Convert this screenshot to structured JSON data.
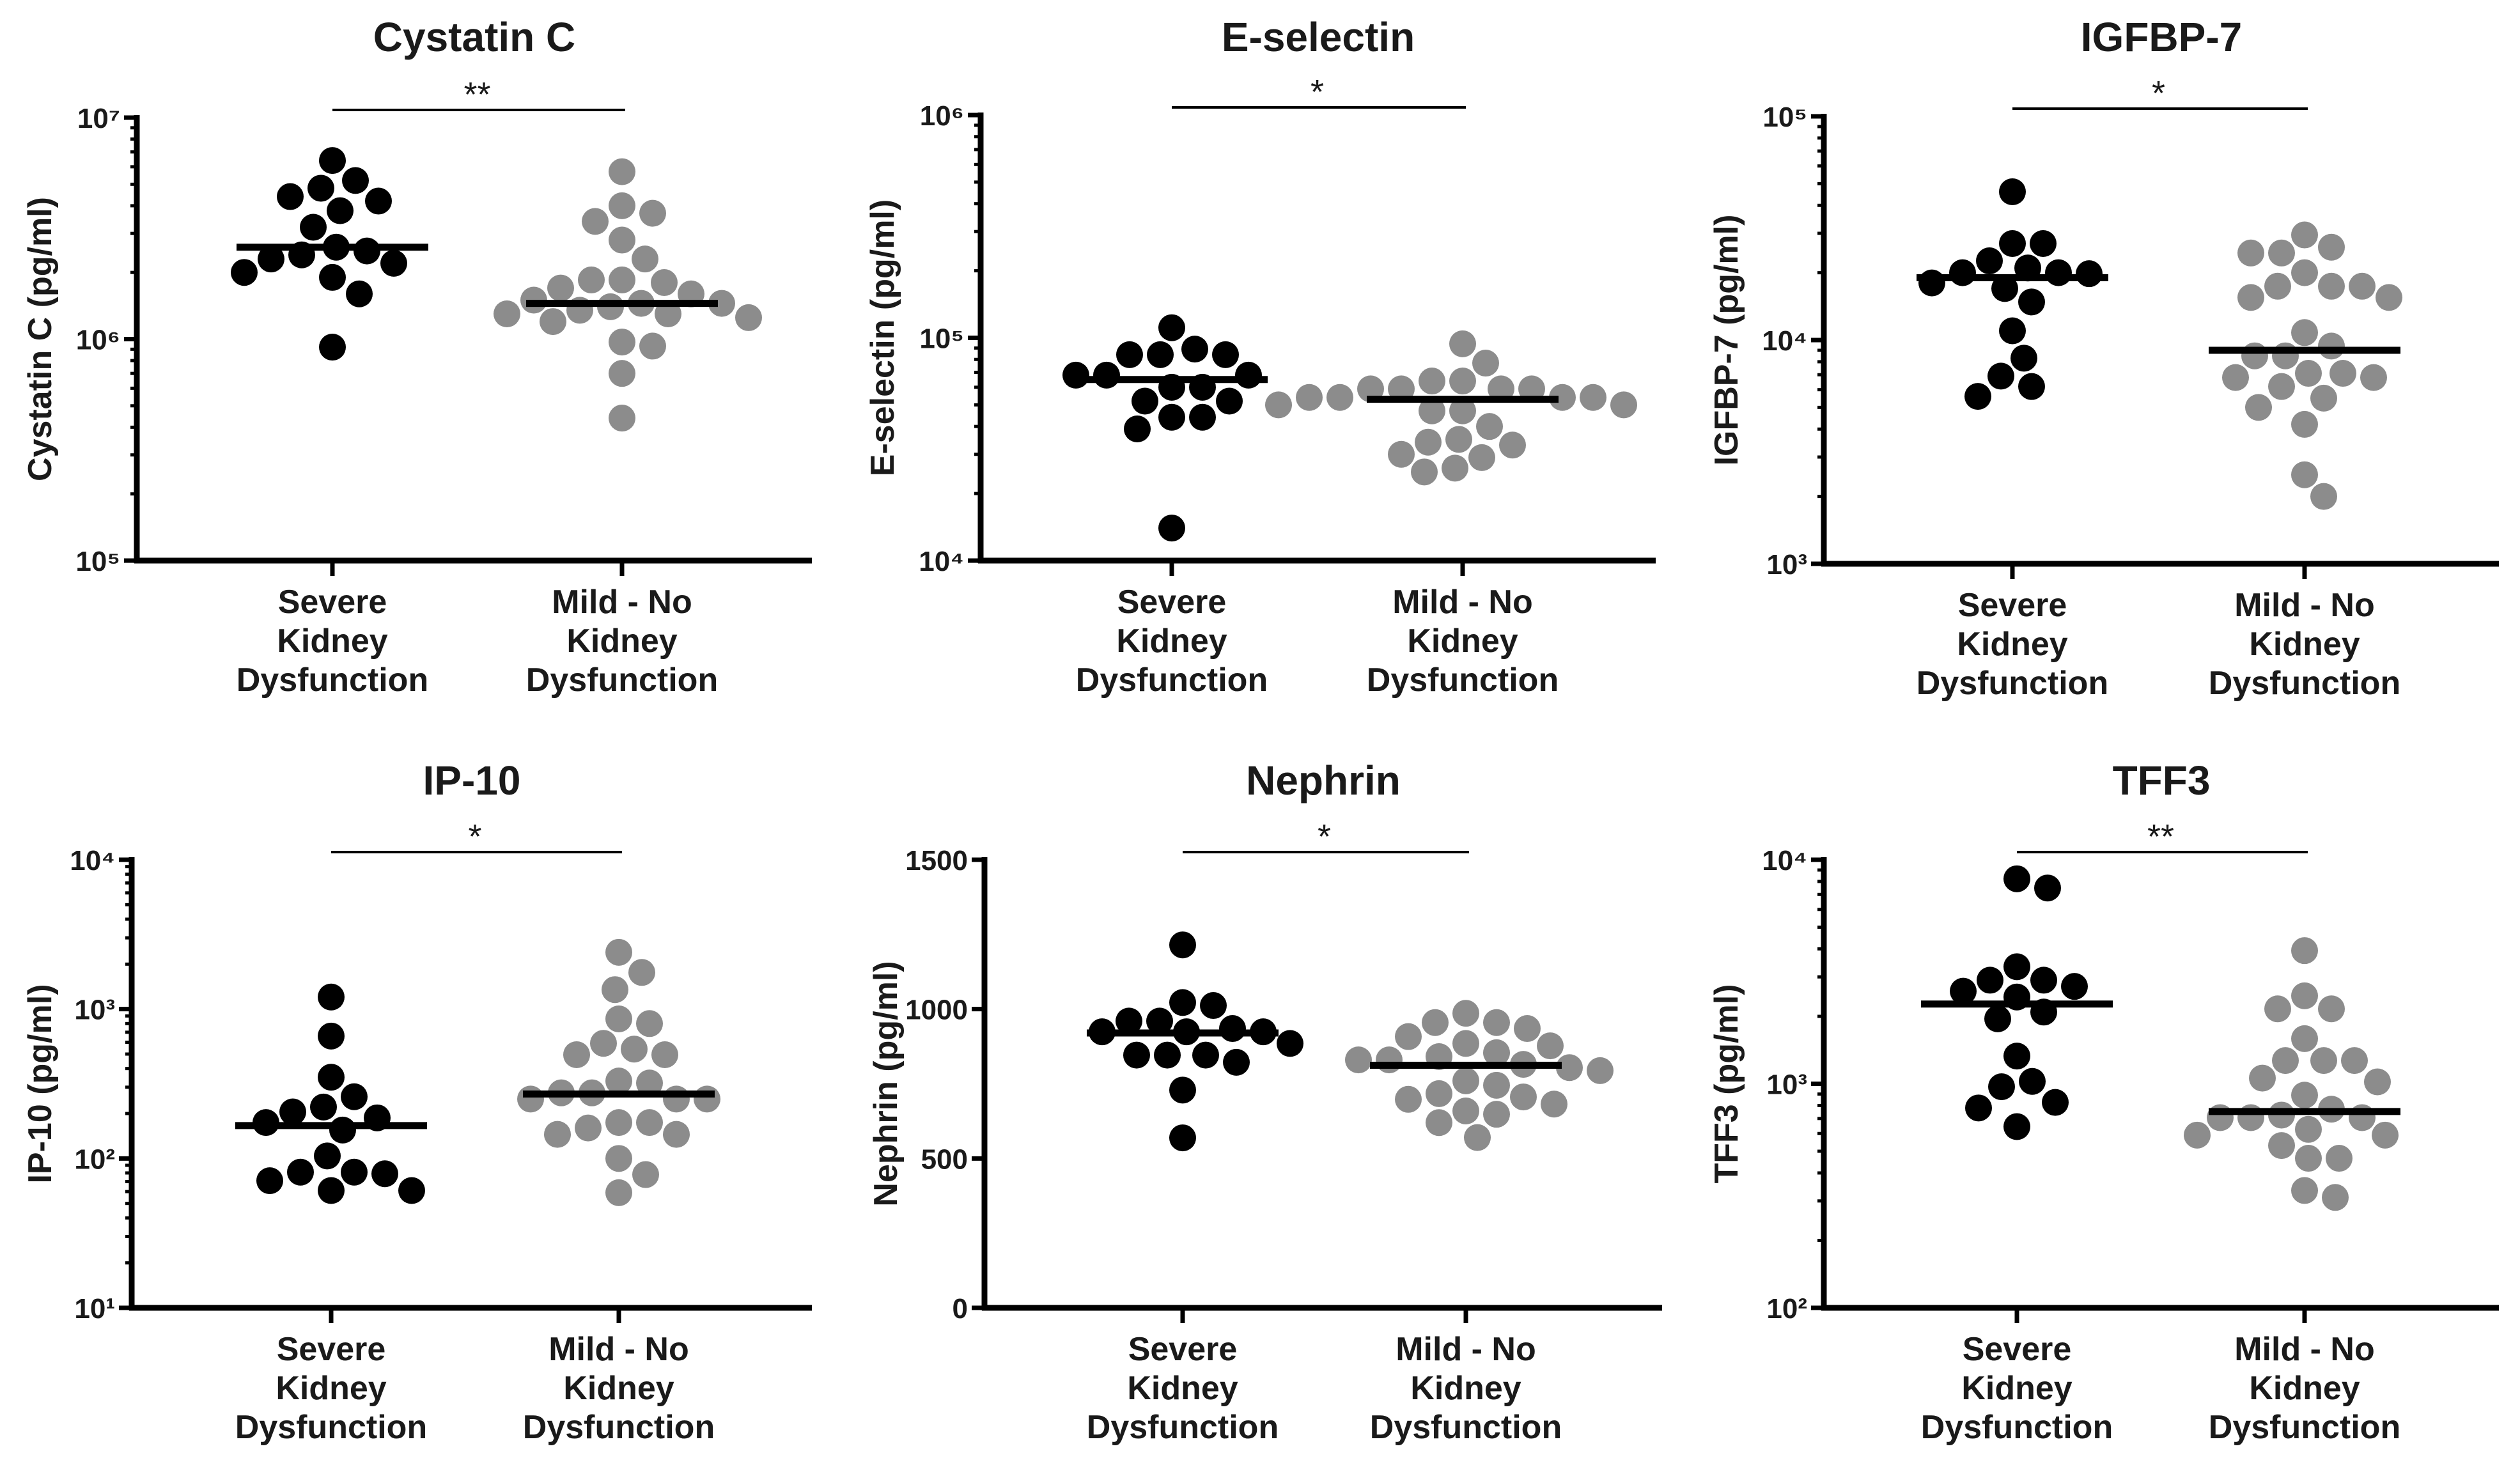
{
  "chart_data": [
    {
      "type": "scatter",
      "title": "Cystatin C",
      "ylabel": "Cystatin C (pg/ml)",
      "yscale": "log",
      "ylim": [
        100000,
        10000000
      ],
      "yticks": [
        100000,
        1000000,
        10000000
      ],
      "ytick_labels": [
        "10⁵",
        "10⁶",
        "10⁷"
      ],
      "categories": [
        [
          "Severe",
          "Kidney",
          "Dysfunction"
        ],
        [
          "Mild - No",
          "Kidney",
          "Dysfunction"
        ]
      ],
      "significance": "**",
      "series": [
        {
          "name": "Severe Kidney Dysfunction",
          "color": "#000000",
          "median": 2600000,
          "values": [
            6400000,
            5200000,
            4800000,
            4400000,
            4200000,
            3800000,
            3200000,
            2600000,
            2500000,
            2400000,
            2300000,
            2200000,
            2000000,
            1900000,
            1600000,
            920000
          ]
        },
        {
          "name": "Mild - No Kidney Dysfunction",
          "color": "#8c8c8c",
          "median": 1450000,
          "values": [
            5700000,
            4000000,
            3700000,
            3400000,
            2800000,
            2300000,
            1850000,
            1850000,
            1800000,
            1700000,
            1600000,
            1500000,
            1450000,
            1450000,
            1400000,
            1350000,
            1300000,
            1300000,
            1250000,
            1200000,
            970000,
            930000,
            700000,
            440000
          ]
        }
      ]
    },
    {
      "type": "scatter",
      "title": "E-selectin",
      "ylabel": "E-selectin (pg/ml)",
      "yscale": "log",
      "ylim": [
        10000,
        1000000
      ],
      "yticks": [
        10000,
        100000,
        1000000
      ],
      "ytick_labels": [
        "10⁴",
        "10⁵",
        "10⁶"
      ],
      "categories": [
        [
          "Severe",
          "Kidney",
          "Dysfunction"
        ],
        [
          "Mild - No",
          "Kidney",
          "Dysfunction"
        ]
      ],
      "significance": "*",
      "series": [
        {
          "name": "Severe Kidney Dysfunction",
          "color": "#000000",
          "median": 65000,
          "values": [
            111000,
            89000,
            84000,
            84000,
            84000,
            68000,
            68000,
            68000,
            60000,
            60000,
            52000,
            52000,
            44000,
            44000,
            39000,
            14000
          ]
        },
        {
          "name": "Mild - No Kidney Dysfunction",
          "color": "#8c8c8c",
          "median": 53000,
          "values": [
            94000,
            77000,
            64000,
            64000,
            59000,
            59000,
            59000,
            59000,
            54000,
            54000,
            54000,
            54000,
            50000,
            50000,
            47000,
            47000,
            40000,
            35000,
            34000,
            33000,
            30000,
            29000,
            26000,
            25000
          ]
        }
      ]
    },
    {
      "type": "scatter",
      "title": "IGFBP-7",
      "ylabel": "IGFBP-7 (pg/ml)",
      "yscale": "log",
      "ylim": [
        1000,
        100000
      ],
      "yticks": [
        1000,
        10000,
        100000
      ],
      "ytick_labels": [
        "10³",
        "10⁴",
        "10⁵"
      ],
      "categories": [
        [
          "Severe",
          "Kidney",
          "Dysfunction"
        ],
        [
          "Mild - No",
          "Kidney",
          "Dysfunction"
        ]
      ],
      "significance": "*",
      "series": [
        {
          "name": "Severe Kidney Dysfunction",
          "color": "#000000",
          "median": 19000,
          "values": [
            46000,
            27000,
            27000,
            22600,
            21000,
            20000,
            20000,
            19800,
            18000,
            17000,
            14800,
            11000,
            8300,
            6900,
            6200,
            5600
          ]
        },
        {
          "name": "Mild - No Kidney Dysfunction",
          "color": "#8c8c8c",
          "median": 9000,
          "values": [
            29500,
            26000,
            24500,
            24500,
            20000,
            17400,
            17400,
            17400,
            15500,
            15500,
            10800,
            9400,
            8500,
            8500,
            7100,
            7100,
            6800,
            6800,
            6200,
            5500,
            5000,
            4200,
            2500,
            2000
          ]
        }
      ]
    },
    {
      "type": "scatter",
      "title": "IP-10",
      "ylabel": "IP-10 (pg/ml)",
      "yscale": "log",
      "ylim": [
        10,
        10000
      ],
      "yticks": [
        10,
        100,
        1000,
        10000
      ],
      "ytick_labels": [
        "10¹",
        "10²",
        "10³",
        "10⁴"
      ],
      "categories": [
        [
          "Severe",
          "Kidney",
          "Dysfunction"
        ],
        [
          "Mild - No",
          "Kidney",
          "Dysfunction"
        ]
      ],
      "significance": "*",
      "series": [
        {
          "name": "Severe Kidney Dysfunction",
          "color": "#000000",
          "median": 166,
          "values": [
            1205,
            660,
            350,
            259,
            221,
            205,
            187,
            174,
            155,
            104,
            81,
            81,
            79,
            71,
            61,
            61
          ]
        },
        {
          "name": "Mild - No Kidney Dysfunction",
          "color": "#8c8c8c",
          "median": 270,
          "values": [
            2400,
            1760,
            1350,
            860,
            800,
            590,
            540,
            495,
            495,
            330,
            320,
            275,
            275,
            250,
            250,
            250,
            174,
            174,
            160,
            145,
            145,
            100,
            78,
            59
          ]
        }
      ]
    },
    {
      "type": "scatter",
      "title": "Nephrin",
      "ylabel": "Nephrin (pg/ml)",
      "yscale": "linear",
      "ylim": [
        0,
        1500
      ],
      "yticks": [
        0,
        500,
        1000,
        1500
      ],
      "ytick_labels": [
        "0",
        "500",
        "1000",
        "1500"
      ],
      "categories": [
        [
          "Severe",
          "Kidney",
          "Dysfunction"
        ],
        [
          "Mild - No",
          "Kidney",
          "Dysfunction"
        ]
      ],
      "significance": "*",
      "series": [
        {
          "name": "Severe Kidney Dysfunction",
          "color": "#000000",
          "median": 920,
          "values": [
            1215,
            1022,
            1012,
            960,
            960,
            935,
            924,
            924,
            924,
            885,
            846,
            846,
            846,
            822,
            729,
            569
          ]
        },
        {
          "name": "Mild - No Kidney Dysfunction",
          "color": "#8c8c8c",
          "median": 812,
          "values": [
            986,
            955,
            955,
            935,
            908,
            885,
            877,
            854,
            841,
            830,
            830,
            815,
            804,
            794,
            760,
            745,
            717,
            706,
            698,
            682,
            659,
            648,
            620,
            570
          ]
        }
      ]
    },
    {
      "type": "scatter",
      "title": "TFF3",
      "ylabel": "TFF3 (pg/ml)",
      "yscale": "log",
      "ylim": [
        100,
        10000
      ],
      "yticks": [
        100,
        1000,
        10000
      ],
      "ytick_labels": [
        "10²",
        "10³",
        "10⁴"
      ],
      "categories": [
        [
          "Severe",
          "Kidney",
          "Dysfunction"
        ],
        [
          "Mild - No",
          "Kidney",
          "Dysfunction"
        ]
      ],
      "significance": "**",
      "series": [
        {
          "name": "Severe Kidney Dysfunction",
          "color": "#000000",
          "median": 2270,
          "values": [
            8220,
            7480,
            3330,
            2900,
            2900,
            2720,
            2590,
            2440,
            2090,
            1950,
            1330,
            1025,
            970,
            826,
            780,
            644
          ]
        },
        {
          "name": "Mild - No Kidney Dysfunction",
          "color": "#8c8c8c",
          "median": 752,
          "values": [
            3930,
            2470,
            2160,
            2160,
            1590,
            1270,
            1270,
            1270,
            1060,
            1020,
            890,
            770,
            725,
            706,
            706,
            706,
            626,
            590,
            590,
            530,
            465,
            465,
            334,
            311
          ]
        }
      ]
    }
  ]
}
